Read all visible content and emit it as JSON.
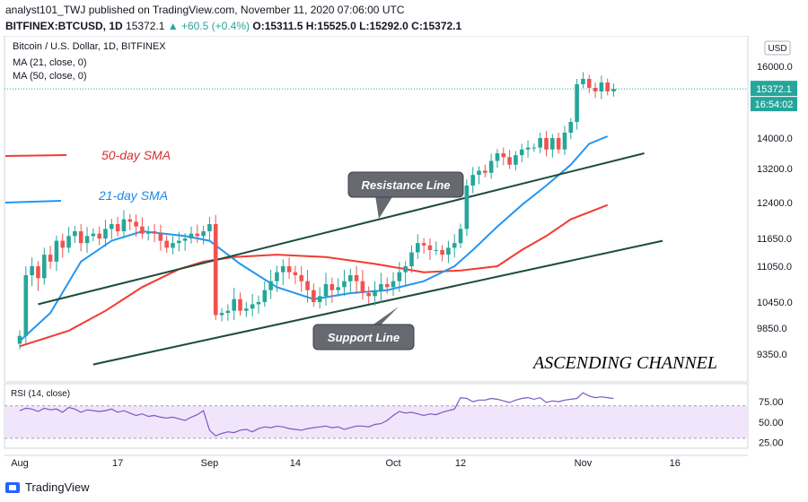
{
  "header": {
    "line1": "analyst101_TWJ published on TradingView.com, November 11, 2020 07:06:00 UTC",
    "symbol": "BITFINEX:BTCUSD, 1D",
    "last": "15372.1",
    "change": "▲ +60.5 (+0.4%)",
    "ohlc": "O:15311.5 H:15525.0 L:15292.0 C:15372.1"
  },
  "footer": {
    "brand": "TradingView"
  },
  "chart_data": {
    "type": "candlestick",
    "title": "Bitcoin / U.S. Dollar, 1D, BITFINEX",
    "legend": [
      "MA (21, close, 0)",
      "MA (50, close, 0)"
    ],
    "currency_button": "USD",
    "price_labels": [
      "16000.0",
      "14000.0",
      "13200.0",
      "12400.0",
      "11650.0",
      "11050.0",
      "10450.0",
      "9850.0",
      "9350.0"
    ],
    "price_ticks": [
      16000,
      14000,
      13200,
      12400,
      11650,
      11050,
      10450,
      9850,
      9350
    ],
    "last_price_label": "15372.1",
    "countdown_label": "16:54:02",
    "last_price": 15372.1,
    "x_labels": [
      "Aug",
      "17",
      "Sep",
      "14",
      "Oct",
      "12",
      "Nov",
      "16"
    ],
    "x_label_days": [
      0,
      16,
      31,
      45,
      61,
      72,
      92,
      107
    ],
    "closes": [
      9700,
      10900,
      11050,
      10850,
      11300,
      11150,
      11600,
      11450,
      11700,
      11800,
      11550,
      11700,
      11750,
      11650,
      11850,
      11950,
      11800,
      12050,
      12000,
      11900,
      11750,
      11800,
      11750,
      11600,
      11450,
      11550,
      11600,
      11650,
      11750,
      11700,
      11800,
      11950,
      10150,
      10200,
      10250,
      10500,
      10250,
      10300,
      10400,
      10450,
      10650,
      10800,
      10950,
      11050,
      10950,
      10900,
      10800,
      10650,
      10450,
      10550,
      10750,
      10650,
      10700,
      10800,
      10900,
      10800,
      10600,
      10550,
      10650,
      10750,
      10700,
      10800,
      10950,
      11050,
      11350,
      11550,
      11500,
      11400,
      11400,
      11300,
      11450,
      11550,
      11850,
      12800,
      13050,
      13150,
      13100,
      13400,
      13600,
      13500,
      13300,
      13550,
      13700,
      13750,
      13750,
      14000,
      13700,
      14000,
      13700,
      14150,
      14450,
      15500,
      15650,
      15400,
      15300,
      15550,
      15300,
      15372
    ],
    "rsi": {
      "label": "RSI (14, close)",
      "levels": [
        "75.00",
        "50.00",
        "25.00"
      ],
      "values": [
        64,
        67,
        66,
        63,
        67,
        65,
        66,
        62,
        68,
        66,
        62,
        65,
        64,
        63,
        64,
        66,
        62,
        64,
        61,
        58,
        60,
        57,
        58,
        56,
        55,
        56,
        54,
        52,
        56,
        59,
        64,
        40,
        33,
        36,
        38,
        37,
        40,
        41,
        38,
        42,
        44,
        43,
        45,
        44,
        42,
        41,
        40,
        42,
        43,
        44,
        45,
        43,
        44,
        41,
        43,
        45,
        45,
        44,
        47,
        48,
        52,
        58,
        63,
        61,
        62,
        60,
        58,
        60,
        59,
        62,
        64,
        66,
        80,
        79,
        75,
        77,
        77,
        79,
        78,
        76,
        74,
        77,
        79,
        80,
        78,
        80,
        74,
        76,
        75,
        77,
        78,
        79,
        86,
        82,
        80,
        81,
        80,
        79
      ]
    },
    "ma21": [
      [
        0,
        9600
      ],
      [
        5,
        10200
      ],
      [
        10,
        11150
      ],
      [
        15,
        11600
      ],
      [
        20,
        11800
      ],
      [
        27,
        11700
      ],
      [
        31,
        11600
      ],
      [
        36,
        11100
      ],
      [
        42,
        10700
      ],
      [
        48,
        10500
      ],
      [
        54,
        10600
      ],
      [
        60,
        10650
      ],
      [
        66,
        10800
      ],
      [
        71,
        11050
      ],
      [
        74,
        11400
      ],
      [
        78,
        11900
      ],
      [
        82,
        12350
      ],
      [
        86,
        12800
      ],
      [
        90,
        13300
      ],
      [
        93,
        13850
      ],
      [
        96,
        14050
      ]
    ],
    "ma50": [
      [
        0,
        9500
      ],
      [
        8,
        9800
      ],
      [
        14,
        10250
      ],
      [
        20,
        10700
      ],
      [
        26,
        11000
      ],
      [
        30,
        11150
      ],
      [
        35,
        11250
      ],
      [
        42,
        11300
      ],
      [
        50,
        11250
      ],
      [
        58,
        11100
      ],
      [
        66,
        10950
      ],
      [
        72,
        10980
      ],
      [
        78,
        11050
      ],
      [
        82,
        11400
      ],
      [
        86,
        11700
      ],
      [
        90,
        12050
      ],
      [
        96,
        12350
      ]
    ],
    "trend_lines": [
      {
        "name": "resistance",
        "points": [
          [
            3,
            10400
          ],
          [
            102,
            13600
          ]
        ]
      },
      {
        "name": "support",
        "points": [
          [
            12,
            9150
          ],
          [
            105,
            11600
          ]
        ]
      }
    ],
    "annotations": {
      "resistance": "Resistance Line",
      "support": "Support Line",
      "sma50": "50-day SMA",
      "sma21": "21-day SMA",
      "pattern": "ASCENDING CHANNEL"
    },
    "colors": {
      "up": "#26a69a",
      "down": "#ef5350",
      "ma21": "#2196f3",
      "ma50": "#f23b30",
      "trend": "#1e4d3a",
      "rsi": "#7e57c2",
      "rsi_band": "#f0e5fb"
    }
  }
}
